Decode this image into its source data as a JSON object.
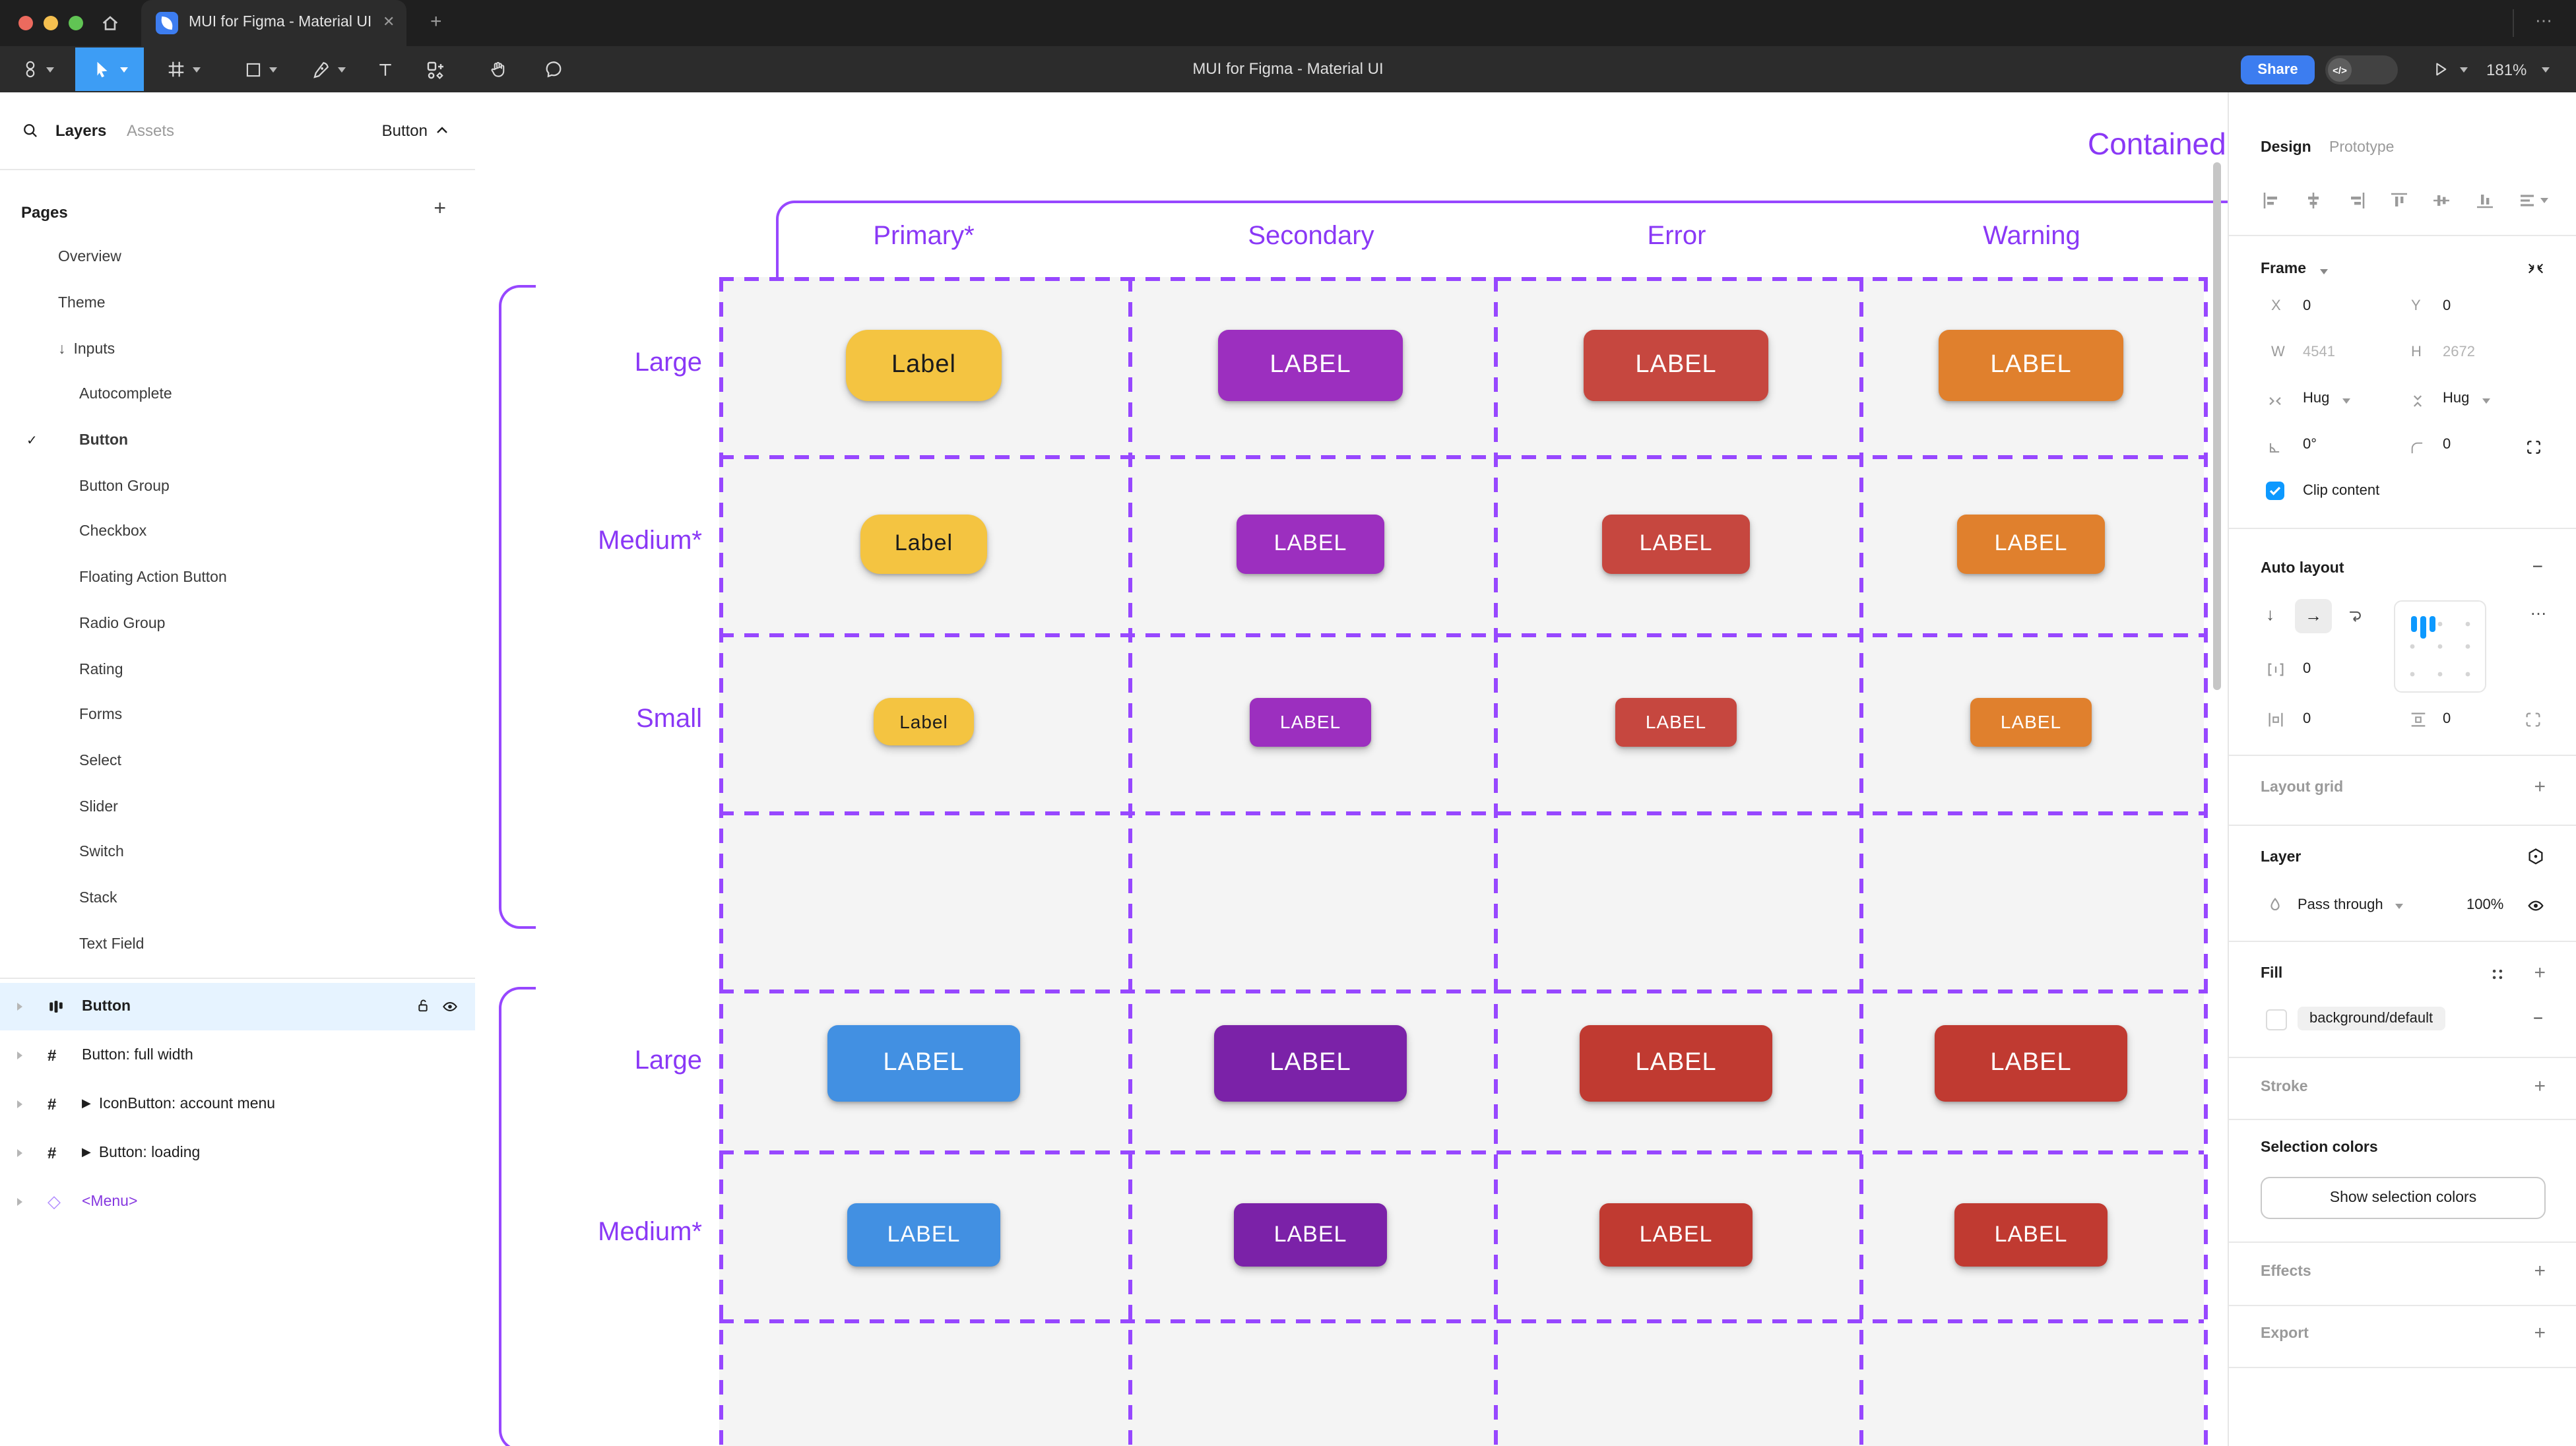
{
  "window": {
    "tab_title": "MUI for Figma - Material UI"
  },
  "icons": {
    "close": "✕",
    "plus": "+",
    "minus": "−",
    "overflow": "⋯",
    "more": "…",
    "check": "✓",
    "arrow_down": "↓",
    "arrow_right": "→",
    "play": "▶",
    "diamond": "◇",
    "hash": "#",
    "caret_up": "^",
    "dev_toggle": "</>"
  },
  "toolbar": {
    "doc_title": "MUI for Figma - Material UI",
    "share_label": "Share",
    "zoom_level": "181%"
  },
  "sidebar": {
    "tabs": {
      "layers": "Layers",
      "assets": "Assets"
    },
    "jump_to": "Button",
    "pages_header": "Pages",
    "pages": [
      {
        "label": "Overview",
        "indent": 1
      },
      {
        "label": "Theme",
        "indent": 1
      },
      {
        "label": "Inputs",
        "indent": 1,
        "prefix": "arrow-down"
      },
      {
        "label": "Autocomplete",
        "indent": 2
      },
      {
        "label": "Button",
        "indent": 2,
        "checked": true,
        "bold": true
      },
      {
        "label": "Button Group",
        "indent": 2
      },
      {
        "label": "Checkbox",
        "indent": 2
      },
      {
        "label": "Floating Action Button",
        "indent": 2
      },
      {
        "label": "Radio Group",
        "indent": 2
      },
      {
        "label": "Rating",
        "indent": 2
      },
      {
        "label": "Forms",
        "indent": 2
      },
      {
        "label": "Select",
        "indent": 2
      },
      {
        "label": "Slider",
        "indent": 2
      },
      {
        "label": "Switch",
        "indent": 2
      },
      {
        "label": "Stack",
        "indent": 2
      },
      {
        "label": "Text Field",
        "indent": 2
      }
    ],
    "layers": [
      {
        "label": "Button",
        "icon": "auto-layout",
        "selected": true
      },
      {
        "label": "Button: full width",
        "icon": "frame"
      },
      {
        "label": "IconButton: account menu",
        "icon": "frame",
        "play": true
      },
      {
        "label": "Button: loading",
        "icon": "frame",
        "play": true
      },
      {
        "label": "<Menu>",
        "icon": "diamond",
        "purple": true
      }
    ]
  },
  "canvas": {
    "frame_title": "Contained",
    "columns": [
      "Primary*",
      "Secondary",
      "Error",
      "Warning"
    ],
    "row_labels": [
      "Large",
      "Medium*",
      "Small",
      "Large",
      "Medium*"
    ],
    "colors": {
      "accent_text": "#8A38F6",
      "dashed": "#9747FF",
      "grid_bg": "#F4F4F4"
    },
    "button_grid": [
      [
        {
          "label": "Label",
          "bg": "#F4C441",
          "fg": "#1C1C1C",
          "w": 118,
          "h": 54,
          "r": 17,
          "fs": 19
        },
        {
          "label": "LABEL",
          "bg": "#9C2FBF",
          "fg": "#FFFFFF",
          "w": 140,
          "h": 54,
          "r": 8,
          "fs": 19
        },
        {
          "label": "LABEL",
          "bg": "#C6473F",
          "fg": "#FFFFFF",
          "w": 140,
          "h": 54,
          "r": 8,
          "fs": 19
        },
        {
          "label": "LABEL",
          "bg": "#E0802D",
          "fg": "#FFFFFF",
          "w": 140,
          "h": 54,
          "r": 8,
          "fs": 19
        }
      ],
      [
        {
          "label": "Label",
          "bg": "#F4C441",
          "fg": "#1C1C1C",
          "w": 96,
          "h": 45,
          "r": 15,
          "fs": 17
        },
        {
          "label": "LABEL",
          "bg": "#9C2FBF",
          "fg": "#FFFFFF",
          "w": 112,
          "h": 45,
          "r": 7,
          "fs": 17
        },
        {
          "label": "LABEL",
          "bg": "#C6473F",
          "fg": "#FFFFFF",
          "w": 112,
          "h": 45,
          "r": 7,
          "fs": 17
        },
        {
          "label": "LABEL",
          "bg": "#E0802D",
          "fg": "#FFFFFF",
          "w": 112,
          "h": 45,
          "r": 7,
          "fs": 17
        }
      ],
      [
        {
          "label": "Label",
          "bg": "#F4C441",
          "fg": "#1C1C1C",
          "w": 76,
          "h": 36,
          "r": 13,
          "fs": 14
        },
        {
          "label": "LABEL",
          "bg": "#9C2FBF",
          "fg": "#FFFFFF",
          "w": 92,
          "h": 37,
          "r": 6,
          "fs": 14
        },
        {
          "label": "LABEL",
          "bg": "#C6473F",
          "fg": "#FFFFFF",
          "w": 92,
          "h": 37,
          "r": 6,
          "fs": 14
        },
        {
          "label": "LABEL",
          "bg": "#E0802D",
          "fg": "#FFFFFF",
          "w": 92,
          "h": 37,
          "r": 6,
          "fs": 14
        }
      ],
      [
        {
          "label": "LABEL",
          "bg": "#4290E2",
          "fg": "#FFFFFF",
          "w": 146,
          "h": 58,
          "r": 8,
          "fs": 19
        },
        {
          "label": "LABEL",
          "bg": "#7B22A8",
          "fg": "#FFFFFF",
          "w": 146,
          "h": 58,
          "r": 8,
          "fs": 19
        },
        {
          "label": "LABEL",
          "bg": "#C03A31",
          "fg": "#FFFFFF",
          "w": 146,
          "h": 58,
          "r": 8,
          "fs": 19
        },
        {
          "label": "LABEL",
          "bg": "#C03A31",
          "fg": "#FFFFFF",
          "w": 146,
          "h": 58,
          "r": 8,
          "fs": 19
        }
      ],
      [
        {
          "label": "LABEL",
          "bg": "#4290E2",
          "fg": "#FFFFFF",
          "w": 116,
          "h": 48,
          "r": 7,
          "fs": 17
        },
        {
          "label": "LABEL",
          "bg": "#7B22A8",
          "fg": "#FFFFFF",
          "w": 116,
          "h": 48,
          "r": 7,
          "fs": 17
        },
        {
          "label": "LABEL",
          "bg": "#C03A31",
          "fg": "#FFFFFF",
          "w": 116,
          "h": 48,
          "r": 7,
          "fs": 17
        },
        {
          "label": "LABEL",
          "bg": "#C03A31",
          "fg": "#FFFFFF",
          "w": 116,
          "h": 48,
          "r": 7,
          "fs": 17
        }
      ]
    ]
  },
  "panel": {
    "tabs": {
      "design": "Design",
      "prototype": "Prototype"
    },
    "frame": {
      "title": "Frame",
      "x_label": "X",
      "x_value": "0",
      "y_label": "Y",
      "y_value": "0",
      "w_label": "W",
      "w_value": "4541",
      "h_label": "H",
      "h_value": "2672",
      "h_sizing": "Hug",
      "v_sizing": "Hug",
      "rotation": "0°",
      "corner_radius": "0",
      "clip_label": "Clip content"
    },
    "auto_layout": {
      "title": "Auto layout",
      "gap": "0",
      "padding_h": "0",
      "padding_v": "0"
    },
    "layout_grid": {
      "title": "Layout grid"
    },
    "layer": {
      "title": "Layer",
      "blend_mode": "Pass through",
      "opacity": "100%"
    },
    "fill": {
      "title": "Fill",
      "token": "background/default"
    },
    "stroke": {
      "title": "Stroke"
    },
    "selection_colors": {
      "title": "Selection colors",
      "button_label": "Show selection colors"
    },
    "effects": {
      "title": "Effects"
    },
    "export": {
      "title": "Export"
    }
  }
}
